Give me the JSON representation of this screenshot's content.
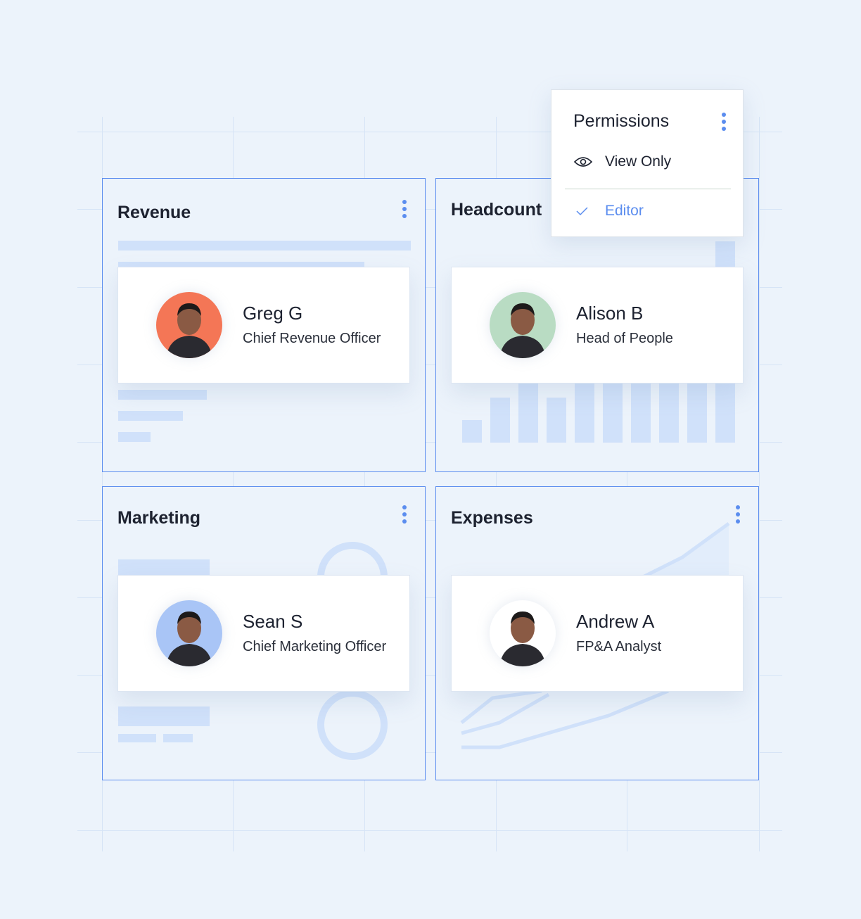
{
  "colors": {
    "accent": "#5b8def",
    "background": "#ecf3fb",
    "placeholder": "#d0e1fa"
  },
  "panels": [
    {
      "title": "Revenue",
      "person": {
        "name": "Greg G",
        "role": "Chief Revenue Officer",
        "avatar_bg": "#f47656"
      }
    },
    {
      "title": "Headcount",
      "person": {
        "name": "Alison B",
        "role": "Head of People",
        "avatar_bg": "#b9dcc3"
      }
    },
    {
      "title": "Marketing",
      "person": {
        "name": "Sean S",
        "role": "Chief Marketing Officer",
        "avatar_bg": "#a9c5f6"
      }
    },
    {
      "title": "Expenses",
      "person": {
        "name": "Andrew A",
        "role": "FP&A Analyst",
        "avatar_bg": "#ffffff"
      }
    }
  ],
  "permissions": {
    "title": "Permissions",
    "options": [
      {
        "label": "View Only",
        "icon": "eye-icon",
        "selected": false
      },
      {
        "label": "Editor",
        "icon": "check-icon",
        "selected": true
      }
    ]
  }
}
